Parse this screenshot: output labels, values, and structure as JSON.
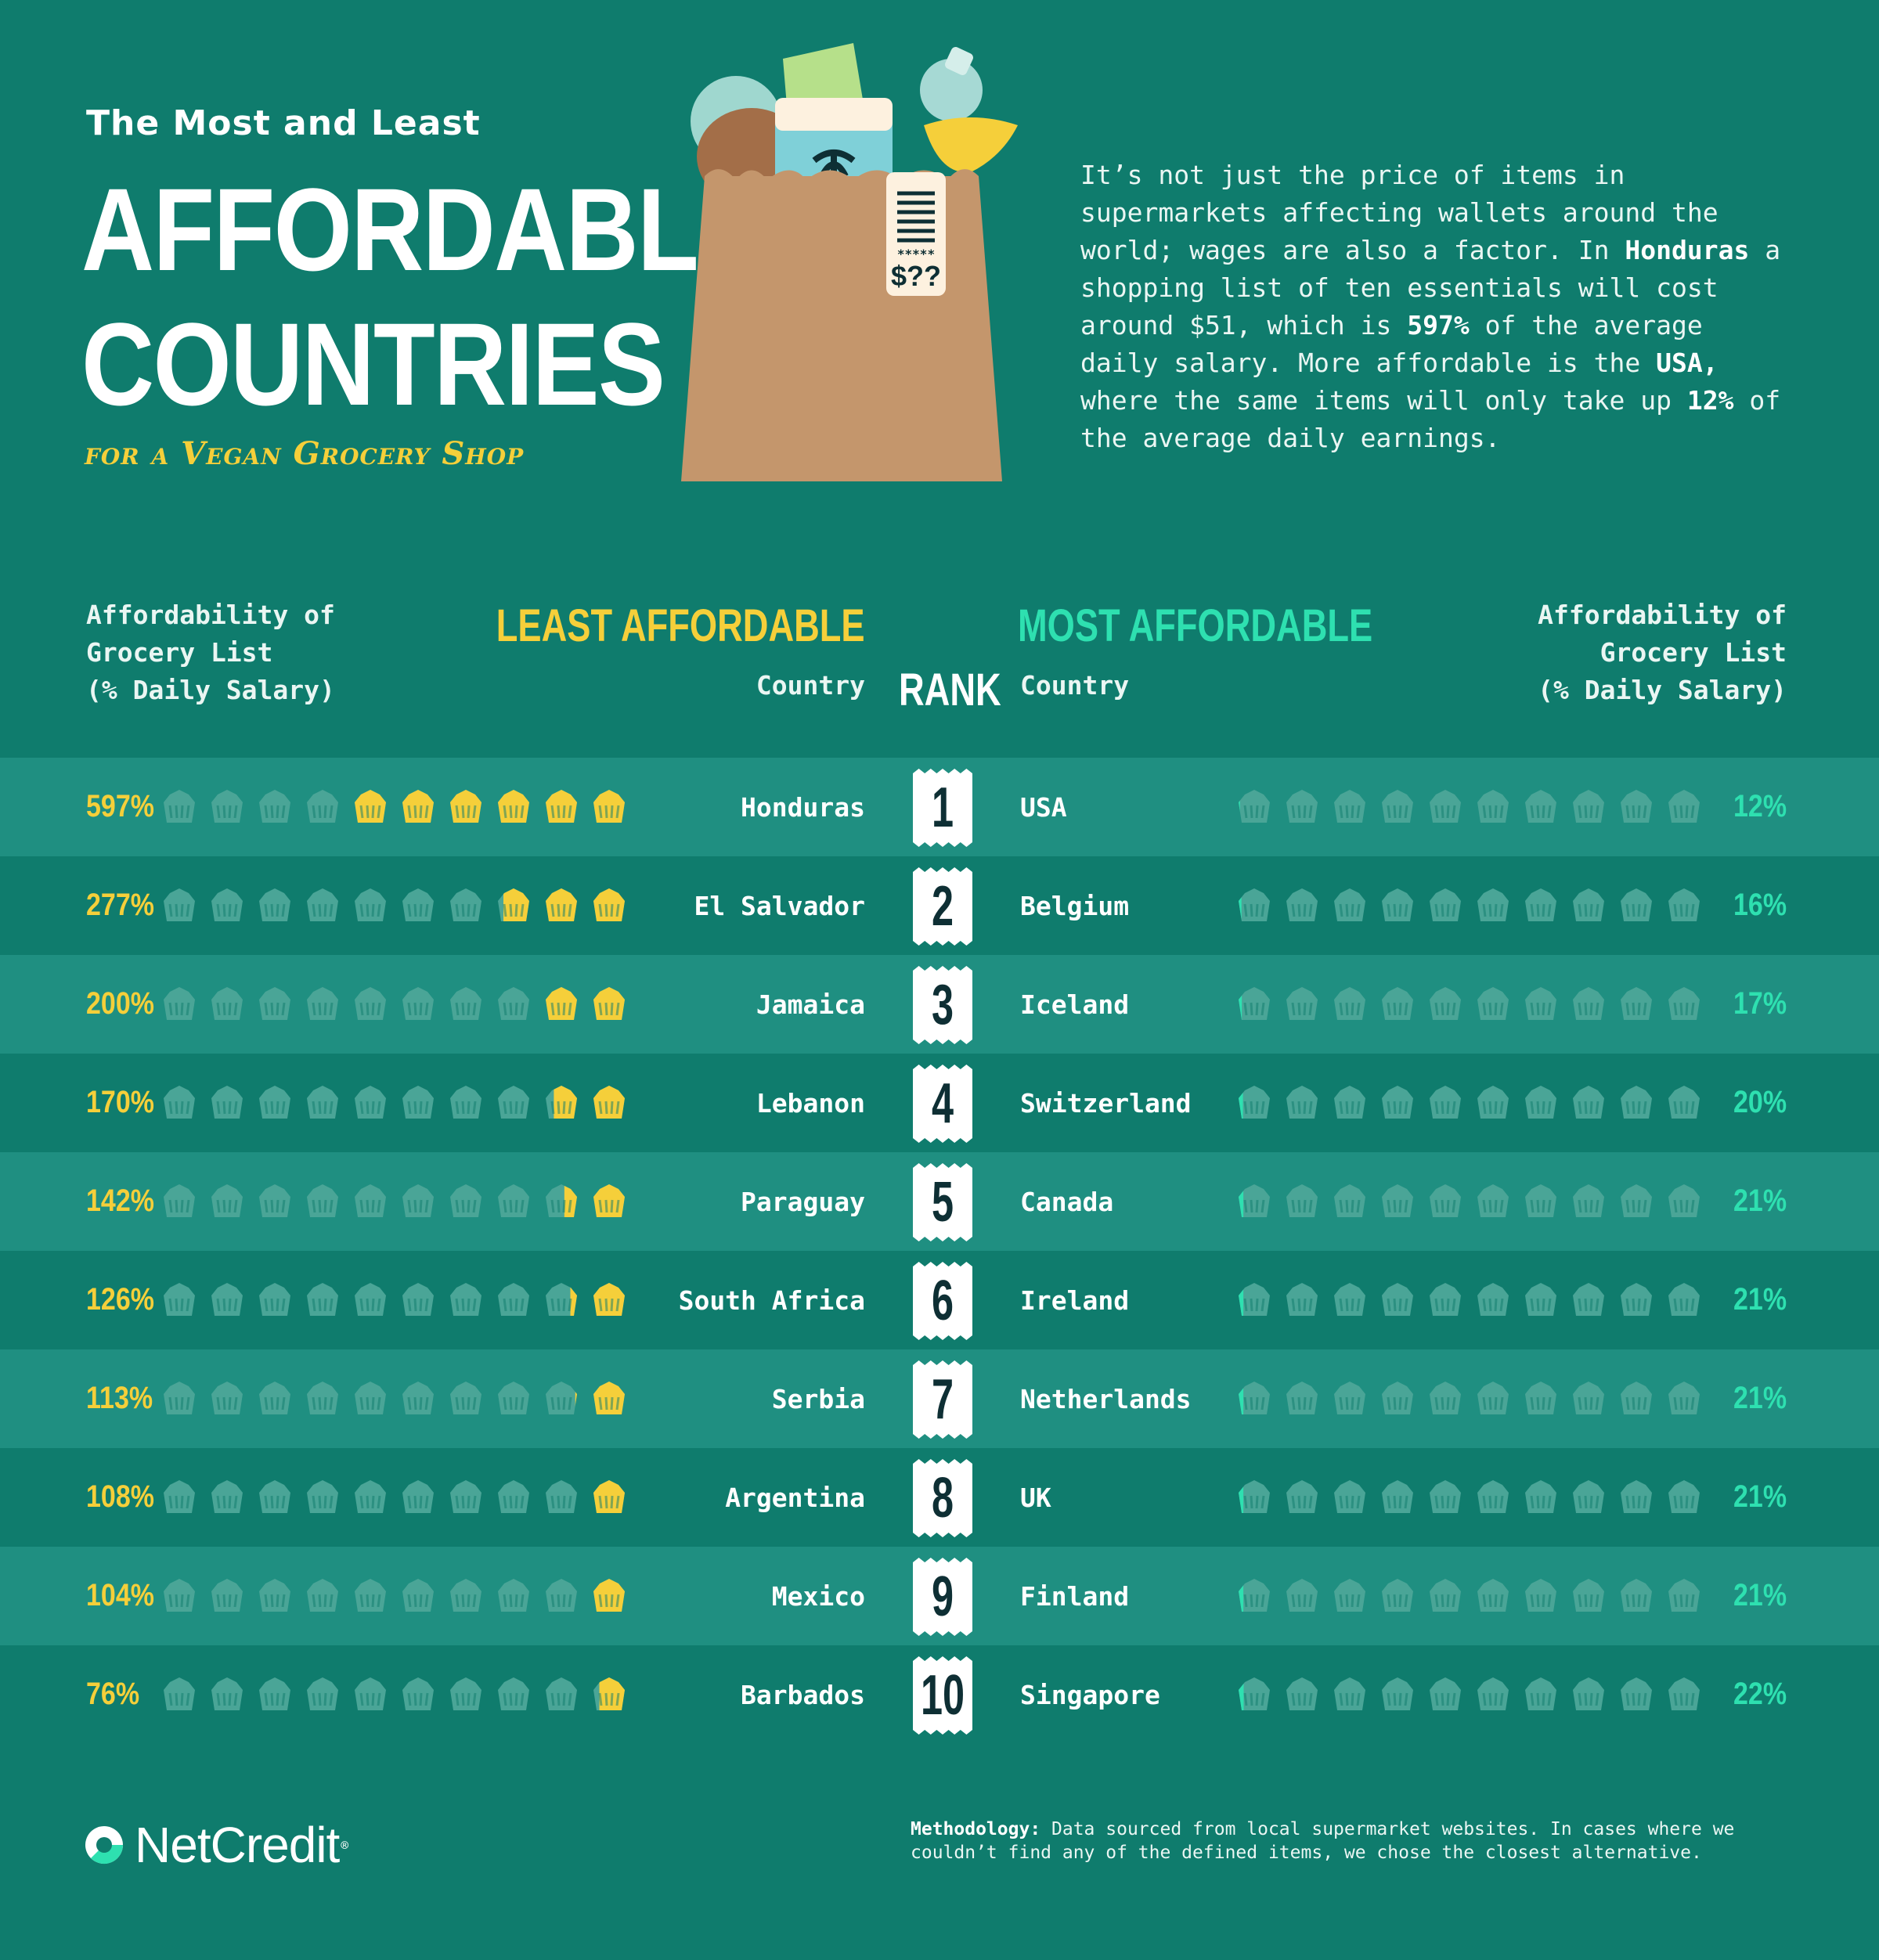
{
  "header": {
    "title_small": "The Most and Least",
    "title_line1": "AFFORDABLE",
    "title_line2": "COUNTRIES",
    "subtitle": "for a Vegan Grocery Shop",
    "bag_price": "$??",
    "bag_stars": "*****"
  },
  "intro": {
    "p1": "It’s not just the price of items in supermarkets affecting wallets around the world; wages are also a factor. In ",
    "b1": "Honduras",
    "p2": " a shopping list of ten essentials will cost around $51, which is ",
    "b2": "597%",
    "p3": " of the average daily salary. More affordable is the ",
    "b3": "USA,",
    "p4": " where the same items will only take up ",
    "b4": "12%",
    "p5": " of the average daily earnings."
  },
  "table_headers": {
    "left_metric_1": "Affordability of",
    "left_metric_2": "Grocery List",
    "left_metric_3": "(% Daily Salary)",
    "right_metric_1": "Affordability of",
    "right_metric_2": "Grocery List",
    "right_metric_3": "(% Daily Salary)",
    "least": "LEAST AFFORDABLE",
    "most": "MOST AFFORDABLE",
    "country": "Country",
    "rank": "RANK"
  },
  "colors": {
    "background": "#0f7c6d",
    "row_light": "#1f8f81",
    "least_accent": "#f5cf3a",
    "most_accent": "#2ee0b0",
    "basket_empty": "#4aa597"
  },
  "chart_data": {
    "type": "bar",
    "unit": "% daily salary",
    "basket_unit_percent": 100,
    "baskets_total": 10,
    "least_affordable": {
      "categories": [
        "Honduras",
        "El Salvador",
        "Jamaica",
        "Lebanon",
        "Paraguay",
        "South Africa",
        "Serbia",
        "Argentina",
        "Mexico",
        "Barbados"
      ],
      "values": [
        597,
        277,
        200,
        170,
        142,
        126,
        113,
        108,
        104,
        76
      ],
      "labels": [
        "597%",
        "277%",
        "200%",
        "170%",
        "142%",
        "126%",
        "113%",
        "108%",
        "104%",
        "76%"
      ]
    },
    "most_affordable": {
      "categories": [
        "USA",
        "Belgium",
        "Iceland",
        "Switzerland",
        "Canada",
        "Ireland",
        "Netherlands",
        "UK",
        "Finland",
        "Singapore"
      ],
      "values": [
        12,
        16,
        17,
        20,
        21,
        21,
        21,
        21,
        21,
        22
      ],
      "labels": [
        "12%",
        "16%",
        "17%",
        "20%",
        "21%",
        "21%",
        "21%",
        "21%",
        "21%",
        "22%"
      ]
    },
    "ranks": [
      "1",
      "2",
      "3",
      "4",
      "5",
      "6",
      "7",
      "8",
      "9",
      "10"
    ]
  },
  "footer": {
    "logo_text": "NetCredit",
    "logo_mark": "®",
    "methodology_label": "Methodology:",
    "methodology_text": " Data sourced from local supermarket websites. In cases where we couldn’t find any of the defined items, we chose the closest alternative."
  }
}
